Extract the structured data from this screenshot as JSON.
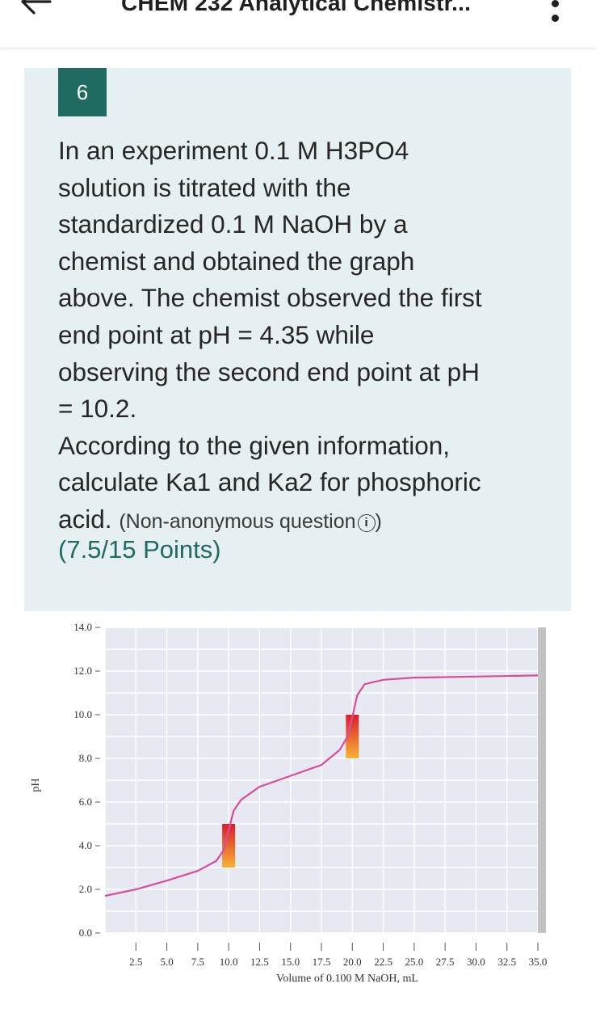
{
  "header": {
    "title": "CHEM 232 Analytical Chemistr...",
    "back_icon": "arrow-left-icon",
    "more_icon": "more-vertical-icon"
  },
  "question": {
    "number": "6",
    "line1": "In an experiment 0.1 M H3PO4",
    "line2": "solution is titrated with the",
    "line3": "standardized 0.1 M NaOH by a",
    "line4": "chemist and obtained the graph",
    "line5": "above. The chemist observed the first",
    "line6": "end point at pH = 4.35 while",
    "line7": "observing the second end point at pH",
    "line8": "= 10.2.",
    "line9": "According to the given information,",
    "line10": "calculate Ka1 and Ka2 for phosphoric",
    "line11": "acid.",
    "tag": "(Non-anonymous question",
    "tag_end": ")",
    "info_icon": "info-circle-icon",
    "points": "(7.5/15 Points)"
  },
  "colors": {
    "accent": "#1f6b62",
    "card_bg": "#e6eff1",
    "curve": "#d94c9c"
  },
  "chart_data": {
    "type": "line",
    "ylabel": "pH",
    "xlabel": "Volume of 0.100 M NaOH, mL",
    "y_ticks": [
      "14.0",
      "12.0",
      "10.0",
      "8.0",
      "6.0",
      "4.0",
      "2.0",
      "0.0"
    ],
    "x_ticks": [
      "2.5",
      "5.0",
      "7.5",
      "10.0",
      "12.5",
      "15.0",
      "17.5",
      "20.0",
      "22.5",
      "25.0",
      "27.5",
      "30.0",
      "32.5",
      "35.0"
    ],
    "xlim": [
      0,
      35
    ],
    "ylim": [
      0,
      14
    ],
    "grid": true,
    "series": [
      {
        "x": [
          0,
          2.5,
          5.0,
          7.5,
          9.0,
          9.6,
          10.0,
          10.4,
          11.0,
          12.5,
          15.0,
          17.5,
          19.0,
          19.6,
          20.0,
          20.4,
          21.0,
          22.5,
          25.0,
          30.0,
          35.0
        ],
        "y": [
          1.7,
          2.0,
          2.4,
          2.85,
          3.3,
          3.8,
          4.7,
          5.6,
          6.1,
          6.7,
          7.2,
          7.7,
          8.4,
          9.0,
          9.9,
          10.9,
          11.4,
          11.6,
          11.7,
          11.75,
          11.8
        ]
      }
    ],
    "indicator_bands": [
      {
        "x": 10.0,
        "y_range": [
          3.0,
          5.0
        ]
      },
      {
        "x": 20.0,
        "y_range": [
          8.0,
          10.0
        ]
      }
    ]
  }
}
